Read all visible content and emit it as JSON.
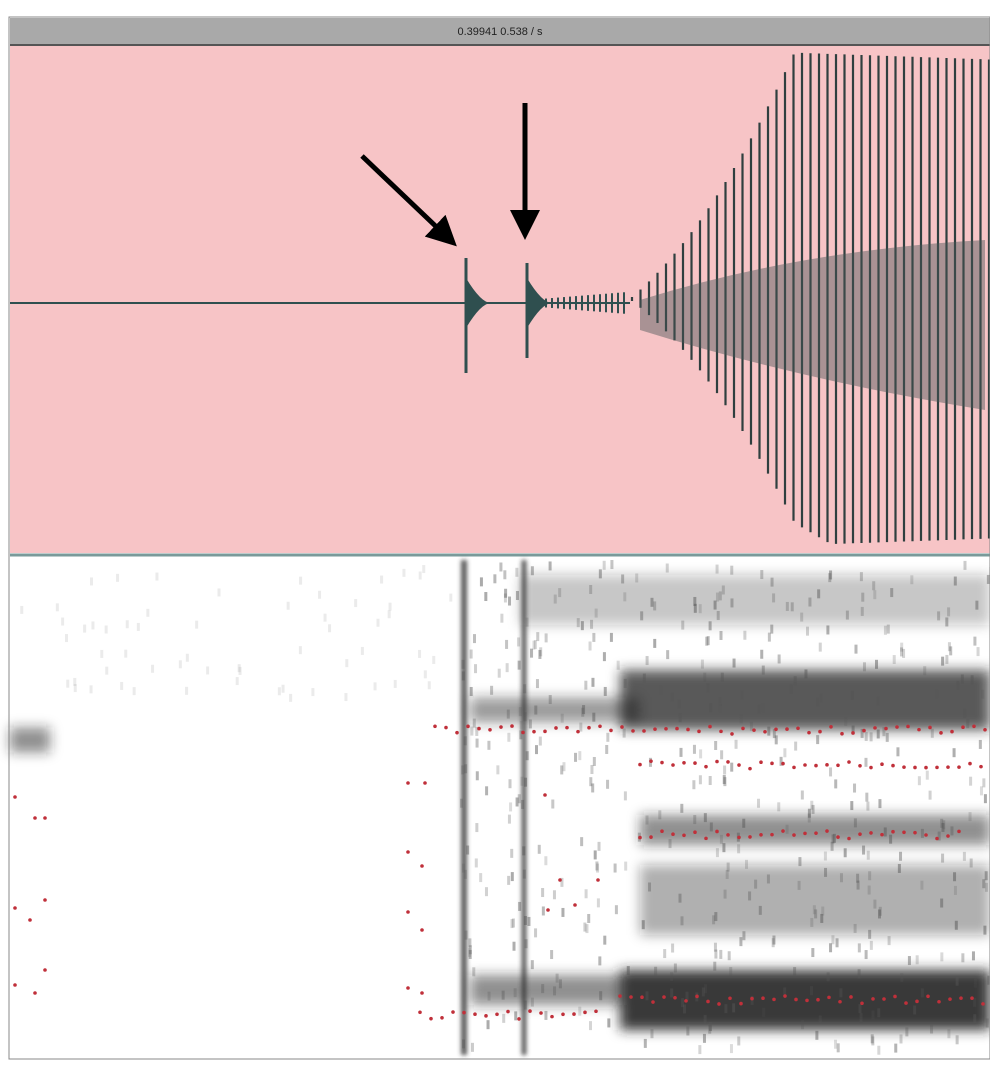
{
  "header": {
    "title": "0.39941 0.538 / s"
  }
}
